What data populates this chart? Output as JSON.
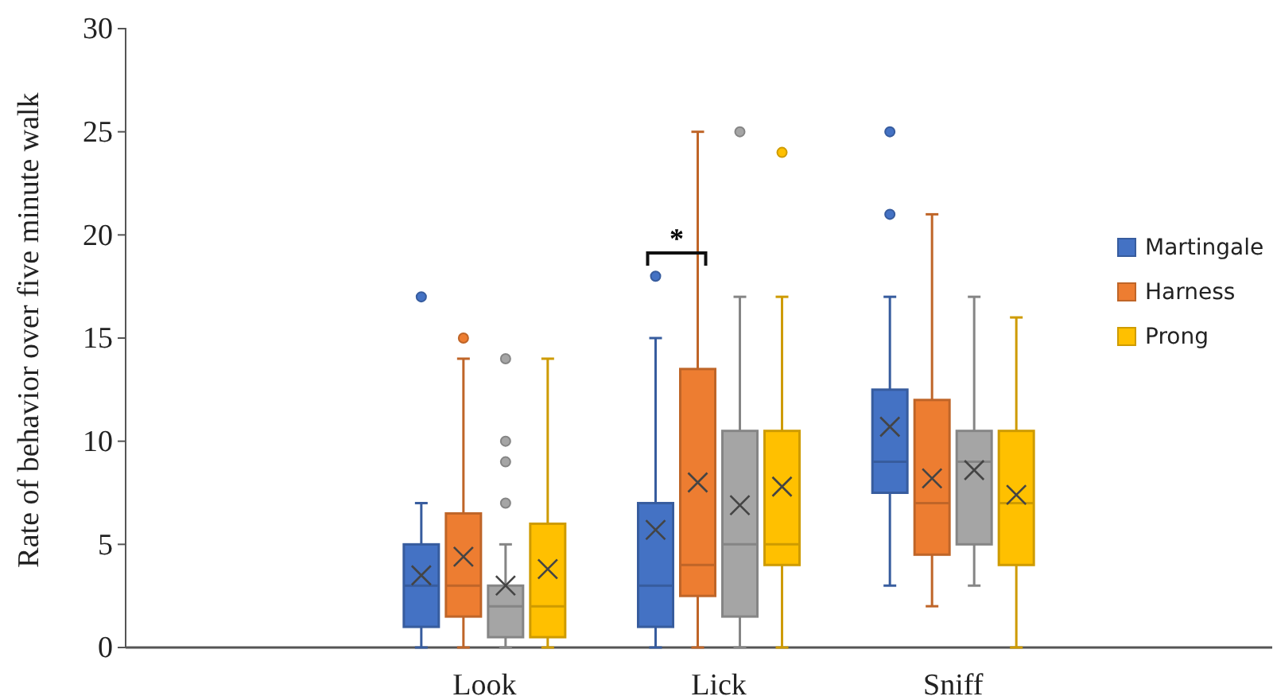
{
  "chart_data": {
    "type": "box",
    "ylabel": "Rate of behavior over five minute walk",
    "categories": [
      "Look",
      "Lick",
      "Sniff"
    ],
    "ylim": [
      0,
      30
    ],
    "yticks": [
      0,
      5,
      10,
      15,
      20,
      25,
      30
    ],
    "grid": false,
    "legend": "right",
    "annotations": [
      "*"
    ],
    "series": [
      {
        "name": "Martingale",
        "color": "#4472c4",
        "boxes": [
          {
            "low": 0,
            "q1": 1,
            "median": 3,
            "q3": 5,
            "high": 7,
            "mean": 3.5,
            "outliers": [
              17
            ]
          },
          {
            "low": 0,
            "q1": 1,
            "median": 3,
            "q3": 7,
            "high": 15,
            "mean": 5.7,
            "outliers": [
              18
            ]
          },
          {
            "low": 3,
            "q1": 7.5,
            "median": 9,
            "q3": 12.5,
            "high": 17,
            "mean": 10.7,
            "outliers": [
              21,
              25
            ]
          }
        ]
      },
      {
        "name": "Harness",
        "color": "#ed7d31",
        "boxes": [
          {
            "low": 0,
            "q1": 1.5,
            "median": 3,
            "q3": 6.5,
            "high": 14,
            "mean": 4.4,
            "outliers": [
              15
            ]
          },
          {
            "low": 0,
            "q1": 2.5,
            "median": 4,
            "q3": 13.5,
            "high": 25,
            "mean": 8
          },
          {
            "low": 2,
            "q1": 4.5,
            "median": 7,
            "q3": 12,
            "high": 21,
            "mean": 8.2
          }
        ]
      },
      {
        "color": "#a5a5a5",
        "boxes": [
          {
            "low": 0,
            "q1": 0.5,
            "median": 2,
            "q3": 3,
            "high": 5,
            "mean": 3,
            "outliers": [
              7,
              9,
              10,
              14
            ]
          },
          {
            "low": 0,
            "q1": 1.5,
            "median": 5,
            "q3": 10.5,
            "high": 17,
            "mean": 6.9,
            "outliers": [
              25
            ]
          },
          {
            "low": 3,
            "q1": 5,
            "median": 9,
            "q3": 10.5,
            "high": 17,
            "mean": 8.6
          }
        ]
      },
      {
        "name": "Prong",
        "color": "#ffc000",
        "boxes": [
          {
            "low": 0,
            "q1": 0.5,
            "median": 2,
            "q3": 6,
            "high": 14,
            "mean": 3.8
          },
          {
            "low": 0,
            "q1": 4,
            "median": 5,
            "q3": 10.5,
            "high": 17,
            "mean": 7.8,
            "outliers": [
              24
            ]
          },
          {
            "low": 0,
            "q1": 4,
            "median": 7,
            "q3": 10.5,
            "high": 16,
            "mean": 7.4
          }
        ]
      }
    ]
  }
}
